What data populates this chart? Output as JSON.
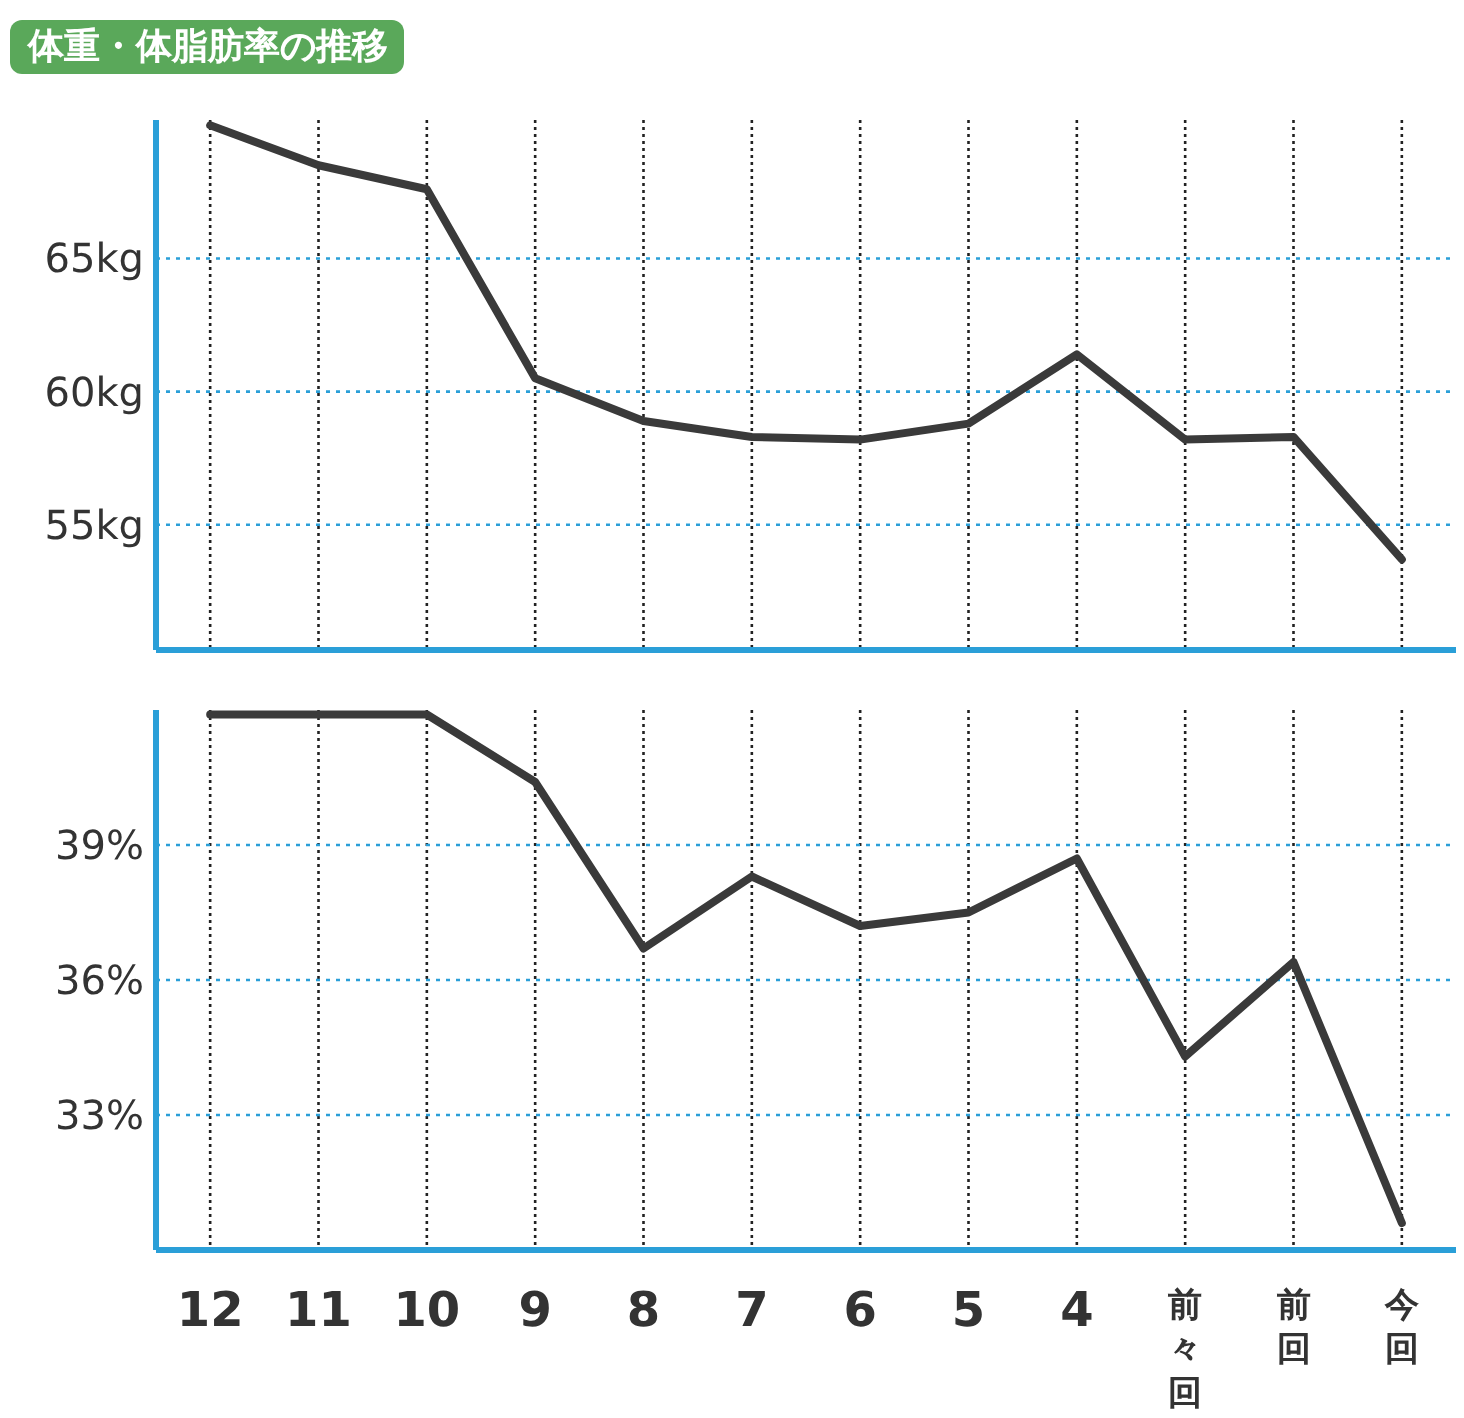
{
  "chart_data": [
    {
      "type": "line",
      "title": "体重・体脂肪率の推移",
      "categories": [
        "12",
        "11",
        "10",
        "9",
        "8",
        "7",
        "6",
        "5",
        "4",
        "前々回",
        "前回",
        "今回"
      ],
      "series": [
        {
          "color": "#3a3a3a",
          "values": [
            70.0,
            68.5,
            67.6,
            60.5,
            58.9,
            58.3,
            58.2,
            58.8,
            61.4,
            58.2,
            58.3,
            53.7
          ]
        }
      ],
      "ylim": [
        50.3,
        70.2
      ],
      "yticks": [
        {
          "value": 55,
          "label": "55kg"
        },
        {
          "value": 60,
          "label": "60kg"
        },
        {
          "value": 65,
          "label": "65kg"
        }
      ],
      "grid": true,
      "tick_labels": "y",
      "marker": "none",
      "line_style": "solid"
    },
    {
      "type": "line",
      "categories": [
        "12",
        "11",
        "10",
        "9",
        "8",
        "7",
        "6",
        "5",
        "4",
        "前々回",
        "前回",
        "今回"
      ],
      "series": [
        {
          "color": "#3a3a3a",
          "values": [
            41.9,
            41.9,
            41.9,
            40.4,
            36.7,
            38.3,
            37.2,
            37.5,
            38.7,
            34.3,
            36.4,
            30.6
          ]
        }
      ],
      "ylim": [
        30.0,
        42.0
      ],
      "yticks": [
        {
          "value": 33,
          "label": "33%"
        },
        {
          "value": 36,
          "label": "36%"
        },
        {
          "value": 39,
          "label": "39%"
        }
      ],
      "grid": true,
      "marker": "none",
      "line_style": "solid"
    }
  ]
}
